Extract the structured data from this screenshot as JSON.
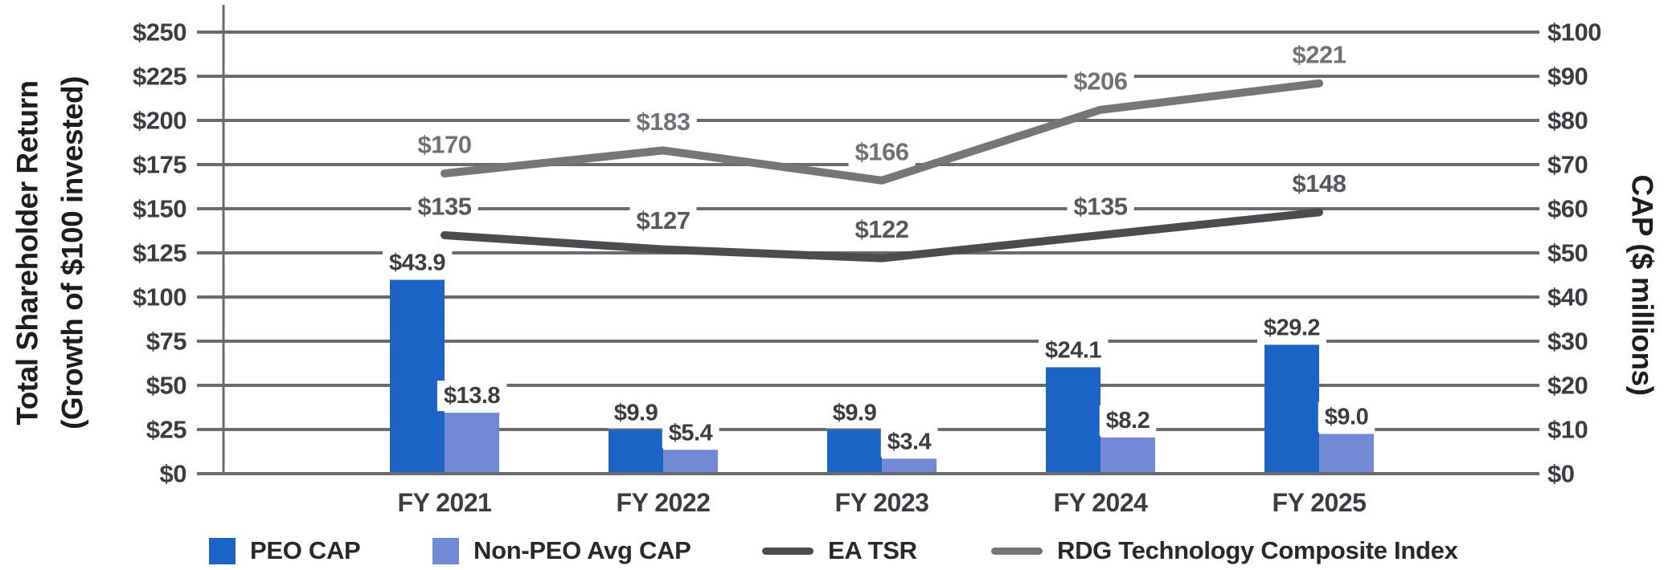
{
  "chart_data": {
    "type": "combo-bar-line",
    "categories": [
      "FY 2021",
      "FY 2022",
      "FY 2023",
      "FY 2024",
      "FY 2025"
    ],
    "series": [
      {
        "name": "PEO CAP",
        "type": "bar",
        "axis": "right",
        "color": "#1C63C6",
        "values": [
          43.9,
          9.9,
          9.9,
          24.1,
          29.2
        ],
        "value_labels": [
          "$43.9",
          "$9.9",
          "$9.9",
          "$24.1",
          "$29.2"
        ],
        "label_color": "#3A3D42"
      },
      {
        "name": "Non-PEO Avg CAP",
        "type": "bar",
        "axis": "right",
        "color": "#7289D5",
        "values": [
          13.8,
          5.4,
          3.4,
          8.2,
          9.0
        ],
        "value_labels": [
          "$13.8",
          "$5.4",
          "$3.4",
          "$8.2",
          "$9.0"
        ],
        "label_color": "#3A3D42"
      },
      {
        "name": "EA TSR",
        "type": "line",
        "axis": "left",
        "color": "#4A4C4F",
        "values": [
          135,
          127,
          122,
          135,
          148
        ],
        "value_labels": [
          "$135",
          "$127",
          "$122",
          "$135",
          "$148"
        ],
        "label_color": "#56595D"
      },
      {
        "name": "RDG Technology Composite Index",
        "type": "line",
        "axis": "left",
        "color": "#757679",
        "values": [
          170,
          183,
          166,
          206,
          221
        ],
        "value_labels": [
          "$170",
          "$183",
          "$166",
          "$206",
          "$221"
        ],
        "label_color": "#6F7276"
      }
    ],
    "left_axis": {
      "title_line1": "Total Shareholder Return",
      "title_line2": "(Growth of $100 invested)",
      "min": 0,
      "max": 250,
      "step": 25,
      "tick_labels": [
        "$0",
        "$25",
        "$50",
        "$75",
        "$100",
        "$125",
        "$150",
        "$175",
        "$200",
        "$225",
        "$250"
      ]
    },
    "right_axis": {
      "title": "CAP ($ millions)",
      "min": 0,
      "max": 100,
      "step": 10,
      "tick_labels": [
        "$0",
        "$10",
        "$20",
        "$30",
        "$40",
        "$50",
        "$60",
        "$70",
        "$80",
        "$90",
        "$100"
      ]
    },
    "grid": true,
    "legend_position": "bottom",
    "legend": [
      {
        "label": "PEO CAP",
        "marker": "square",
        "color": "#1C63C6"
      },
      {
        "label": "Non-PEO Avg CAP",
        "marker": "square",
        "color": "#7289D5"
      },
      {
        "label": "EA TSR",
        "marker": "line",
        "color": "#4A4C4F"
      },
      {
        "label": "RDG Technology Composite Index",
        "marker": "line",
        "color": "#757679"
      }
    ],
    "colors": {
      "grid": "#6A6B6D",
      "axis": "#6A6B6D",
      "tick_text": "#3A3D42",
      "axis_title_text": "#1B1D1F",
      "legend_text": "#27292C",
      "background": "#FFFFFF"
    }
  }
}
